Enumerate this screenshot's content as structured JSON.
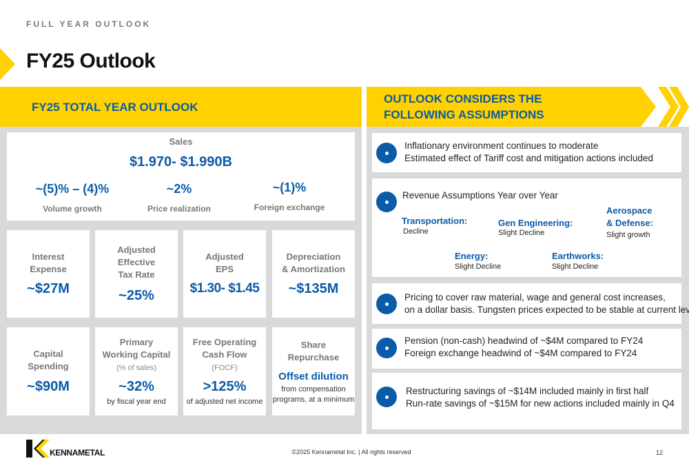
{
  "header": {
    "eyebrow": "FULL YEAR OUTLOOK",
    "title": "FY25 Outlook"
  },
  "left": {
    "title": "FY25 TOTAL YEAR OUTLOOK",
    "sales": {
      "label": "Sales",
      "value": "$1.970- $1.990B",
      "items": [
        {
          "value": "~(5)% – (4)%",
          "label": "Volume growth"
        },
        {
          "value": "~2%",
          "label": "Price realization"
        },
        {
          "value": "~(1)%",
          "label": "Foreign exchange"
        }
      ]
    },
    "row1": [
      {
        "label1": "Interest",
        "label2": "Expense",
        "value": "~$27M"
      },
      {
        "label1": "Adjusted",
        "label2": "Effective",
        "label3": "Tax Rate",
        "value": "~25%"
      },
      {
        "label1": "Adjusted",
        "label2": "EPS",
        "value": "$1.30- $1.45"
      },
      {
        "label1": "Depreciation",
        "label2": "& Amortization",
        "value": "~$135M"
      }
    ],
    "row2": [
      {
        "label1": "Capital",
        "label2": "Spending",
        "value": "~$90M"
      },
      {
        "label1": "Primary",
        "label2": "Working Capital",
        "sub": "(% of sales)",
        "value": "~32%",
        "note": "by fiscal year end"
      },
      {
        "label1": "Free Operating",
        "label2": "Cash Flow",
        "sub": "(FOCF)",
        "value": ">125%",
        "note": "of adjusted net income"
      },
      {
        "label1": "Share",
        "label2": "Repurchase",
        "value": "Offset dilution",
        "note1": "from compensation",
        "note2": "programs, at a minimum"
      }
    ]
  },
  "right": {
    "title_line1": "OUTLOOK CONSIDERS THE",
    "title_line2": "FOLLOWING ASSUMPTIONS",
    "a1": {
      "line1": "Inflationary environment continues to moderate",
      "line2": "Estimated effect of Tariff cost and mitigation actions included"
    },
    "a2": {
      "heading": "Revenue Assumptions Year over Year",
      "segments": [
        {
          "name": "Transportation:",
          "value": "Decline"
        },
        {
          "name": "Gen Engineering:",
          "value": "Slight Decline"
        },
        {
          "name1": "Aerospace",
          "name2": "& Defense:",
          "value": "Slight growth"
        },
        {
          "name": "Energy:",
          "value": "Slight Decline"
        },
        {
          "name": "Earthworks:",
          "value": "Slight Decline"
        }
      ]
    },
    "a3": {
      "line1": "Pricing to cover raw material, wage and general cost increases,",
      "line2": "on a dollar basis. Tungsten prices expected to be stable at current level"
    },
    "a4": {
      "line1": "Pension (non-cash) headwind of ~$4M compared to FY24",
      "line2": "Foreign exchange headwind of ~$4M compared to FY24"
    },
    "a5": {
      "line1": "Restructuring savings of ~$14M included mainly in first half",
      "line2": "Run-rate savings of ~$15M for new actions included mainly in Q4"
    }
  },
  "footer": {
    "logo_text": "KENNAMETAL",
    "copyright": "©2025 Kennametal Inc.  |  All rights reserved",
    "page_number": "12"
  },
  "colors": {
    "accent_yellow": "#FFD100",
    "brand_blue": "#0A5BA8",
    "panel_gray": "#D9D9D9"
  }
}
